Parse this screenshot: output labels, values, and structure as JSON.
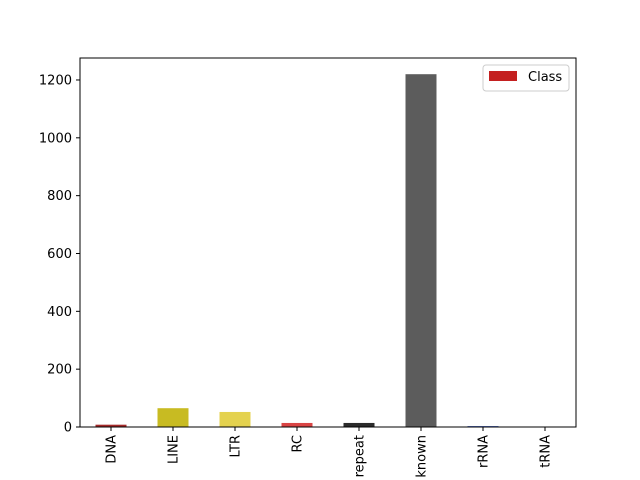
{
  "chart_data": {
    "type": "bar",
    "categories": [
      "DNA",
      "LINE",
      "LTR",
      "RC",
      "Simple_repeat",
      "Unknown",
      "rRNA",
      "tRNA"
    ],
    "visible_tick_labels": [
      "DNA",
      "LINE",
      "LTR",
      "RC",
      "repeat",
      "known",
      "rRNA",
      "tRNA"
    ],
    "values": [
      8,
      65,
      52,
      14,
      14,
      1220,
      3,
      1
    ],
    "bar_colors": [
      "#a52a2a",
      "#c8bb22",
      "#e4d24f",
      "#d94444",
      "#2b2b2b",
      "#5c5c5c",
      "#2b4fbf",
      "#8888cc"
    ],
    "title": "",
    "xlabel": "",
    "ylabel": "",
    "ylim": [
      0,
      1276
    ],
    "yticks": [
      0,
      200,
      400,
      600,
      800,
      1000,
      1200
    ],
    "legend": {
      "entries": [
        {
          "label": "Class",
          "color": "#c42020"
        }
      ],
      "position": "top-right"
    },
    "grid": false
  }
}
